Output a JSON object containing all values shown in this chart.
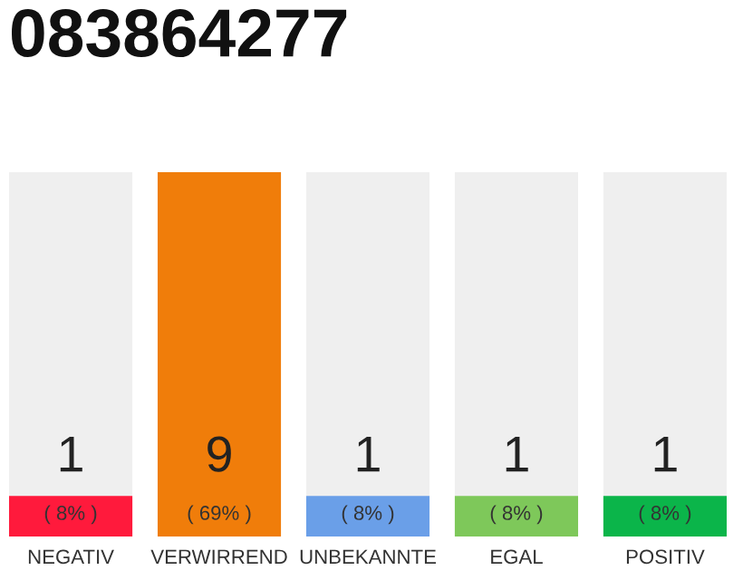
{
  "chart_data": {
    "type": "bar",
    "title": "083864277",
    "categories": [
      "NEGATIV",
      "VERWIRREND",
      "UNBEKANNTE",
      "EGAL",
      "POSITIV"
    ],
    "values": [
      1,
      9,
      1,
      1,
      1
    ],
    "colors": [
      "#ff1a3c",
      "#f07d0a",
      "#6a9fe8",
      "#7ec85a",
      "#0bb54a"
    ],
    "data_labels": true,
    "annotations": [
      "( 8% )",
      "( 69% )",
      "( 8% )",
      "( 8% )",
      "( 8% )"
    ],
    "grid": false,
    "legend": false
  }
}
